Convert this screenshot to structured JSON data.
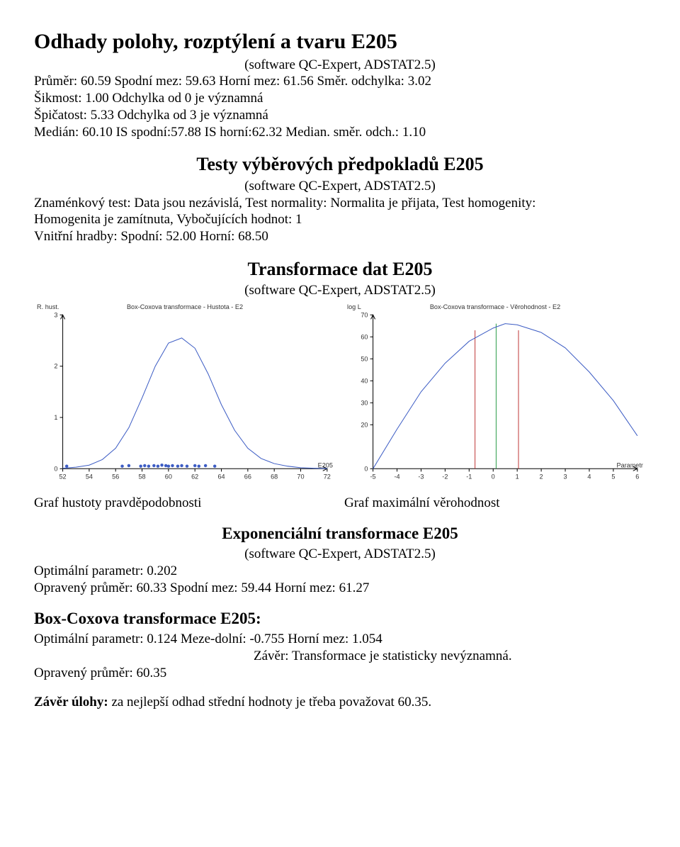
{
  "s1": {
    "title": "Odhady polohy, rozptýlení a tvaru E205",
    "subtitle": "(software QC-Expert, ADSTAT2.5)",
    "line1": "Průměr: 60.59   Spodní mez: 59.63 Horní mez: 61.56   Směr. odchylka: 3.02",
    "line2": "Šikmost: 1.00 Odchylka od 0 je významná",
    "line3": "Špičatost: 5.33  Odchylka od 3 je významná",
    "line4": "Medián: 60.10   IS spodní:57.88 IS horní:62.32   Median. směr. odch.: 1.10"
  },
  "s2": {
    "title": "Testy výběrových předpokladů E205",
    "subtitle": "(software QC-Expert, ADSTAT2.5)",
    "line1": "Znaménkový test: Data jsou nezávislá,   Test normality:  Normalita je přijata, Test homogenity:",
    "line2": "Homogenita je zamítnuta, Vybočujících hodnot:  1",
    "line3": "Vnitřní hradby: Spodní: 52.00 Horní: 68.50"
  },
  "s3": {
    "title": "Transformace dat E205",
    "subtitle": "(software QC-Expert, ADSTAT2.5)"
  },
  "density_chart": {
    "type": "line+scatter",
    "title": "Box-Coxova transformace - Hustota - E2",
    "xlabel": "E205",
    "ylabel": "R. hust.",
    "xlim": [
      52,
      72
    ],
    "xticks": [
      52,
      54,
      56,
      58,
      60,
      62,
      64,
      66,
      68,
      70,
      72
    ],
    "ylim": [
      0,
      3
    ],
    "yticks": [
      0,
      1,
      2,
      3
    ],
    "line_color": "#3c5cc4",
    "dot_color": "#3c5cc4",
    "bell_points": [
      [
        52,
        0.01
      ],
      [
        53,
        0.03
      ],
      [
        54,
        0.07
      ],
      [
        55,
        0.18
      ],
      [
        56,
        0.4
      ],
      [
        57,
        0.8
      ],
      [
        58,
        1.38
      ],
      [
        59,
        2.0
      ],
      [
        60,
        2.45
      ],
      [
        61,
        2.55
      ],
      [
        62,
        2.35
      ],
      [
        63,
        1.85
      ],
      [
        64,
        1.25
      ],
      [
        65,
        0.75
      ],
      [
        66,
        0.4
      ],
      [
        67,
        0.2
      ],
      [
        68,
        0.1
      ],
      [
        69,
        0.05
      ],
      [
        70,
        0.02
      ],
      [
        71,
        0.01
      ],
      [
        72,
        0.005
      ]
    ],
    "scatter_points": [
      [
        52.3,
        0.05
      ],
      [
        56.5,
        0.05
      ],
      [
        57.0,
        0.06
      ],
      [
        57.9,
        0.05
      ],
      [
        58.2,
        0.06
      ],
      [
        58.5,
        0.05
      ],
      [
        58.9,
        0.06
      ],
      [
        59.2,
        0.05
      ],
      [
        59.5,
        0.07
      ],
      [
        59.8,
        0.06
      ],
      [
        60.0,
        0.05
      ],
      [
        60.3,
        0.06
      ],
      [
        60.7,
        0.05
      ],
      [
        61.0,
        0.06
      ],
      [
        61.4,
        0.05
      ],
      [
        62.0,
        0.06
      ],
      [
        62.3,
        0.05
      ],
      [
        62.8,
        0.06
      ],
      [
        63.5,
        0.05
      ]
    ]
  },
  "likelihood_chart": {
    "type": "line",
    "title": "Box-Coxova transformace - Věrohodnost - E2",
    "xlabel": "Parametr",
    "ylabel": "log L",
    "xlim": [
      -5,
      6
    ],
    "xticks": [
      -5,
      -4,
      -3,
      -2,
      -1,
      0,
      1,
      2,
      3,
      4,
      5,
      6
    ],
    "ylim": [
      0,
      70
    ],
    "yticks": [
      0,
      20,
      30,
      40,
      50,
      60,
      70
    ],
    "line_color": "#3c5cc4",
    "vline_colors": {
      "outer": "#c03a3a",
      "center": "#2e9e4a"
    },
    "vlines_x": [
      -0.755,
      0.124,
      1.054
    ],
    "curve_points": [
      [
        -5,
        -2
      ],
      [
        -4,
        18
      ],
      [
        -3,
        35
      ],
      [
        -2,
        48
      ],
      [
        -1,
        58
      ],
      [
        0,
        64
      ],
      [
        0.5,
        66
      ],
      [
        1,
        65.5
      ],
      [
        2,
        62
      ],
      [
        3,
        55
      ],
      [
        4,
        44
      ],
      [
        5,
        31
      ],
      [
        6,
        15
      ]
    ]
  },
  "captions": {
    "left": "Graf hustoty pravděpodobnosti",
    "right": "Graf maximální věrohodnost"
  },
  "s4": {
    "title": "Exponenciální transformace E205",
    "subtitle": "(software QC-Expert, ADSTAT2.5)",
    "line1": "Optimální parametr:   0.202",
    "line2": "Opravený průměr:  60.33    Spodní mez: 59.44      Horní mez: 61.27"
  },
  "s5": {
    "title": "Box-Coxova transformace E205:",
    "line1": "Optimální parametr:  0.124      Meze-dolní: -0.755    Horní mez: 1.054",
    "line2": "Závěr: Transformace je statisticky nevýznamná.",
    "line3": "Opravený průměr: 60.35"
  },
  "conclusion_label": "Závěr úlohy:",
  "conclusion_text": " za nejlepší odhad střední hodnoty je třeba považovat 60.35."
}
